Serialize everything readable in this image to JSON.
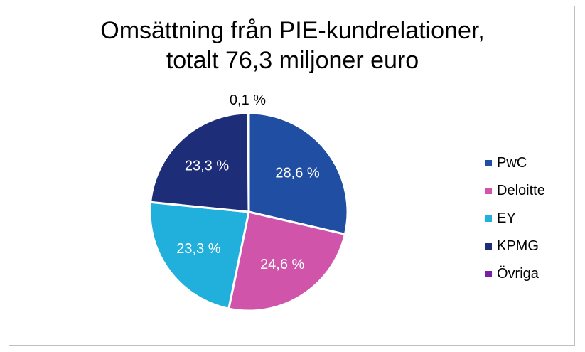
{
  "chart_data": {
    "type": "pie",
    "title": [
      "Omsättning från PIE-kundrelationer,",
      "totalt 76,3 miljoner euro"
    ],
    "series": [
      {
        "name": "PwC",
        "value": 28.6,
        "label": "28,6 %",
        "color": "#1f4ea3"
      },
      {
        "name": "Deloitte",
        "value": 24.6,
        "label": "24,6 %",
        "color": "#d054aa"
      },
      {
        "name": "EY",
        "value": 23.3,
        "label": "23,3 %",
        "color": "#21b0dc"
      },
      {
        "name": "KPMG",
        "value": 23.3,
        "label": "23,3 %",
        "color": "#1e2d78"
      },
      {
        "name": "Övriga",
        "value": 0.1,
        "label": "0,1 %",
        "color": "#7a1fa8"
      }
    ],
    "legend_position": "right"
  }
}
